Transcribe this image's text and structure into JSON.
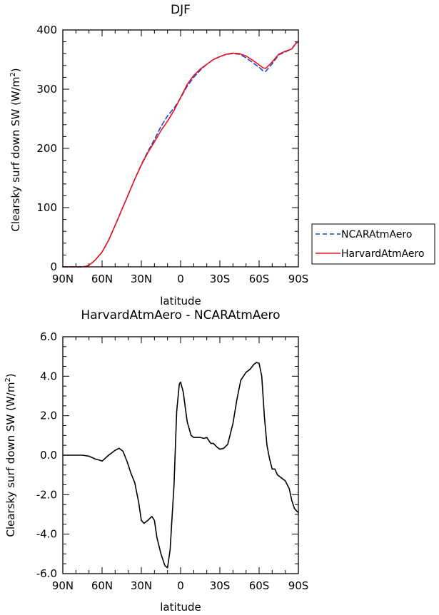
{
  "chart_data": [
    {
      "type": "line",
      "title": "DJF",
      "xlabel": "latitude",
      "ylabel": "Clearsky surf down SW (W/m²)",
      "ylabel_main": "Clearsky surf down SW (W/m",
      "ylabel_sup": "2",
      "ylabel_close": ")",
      "x_axis": "latitude, 90N (left) to 90S (right); N positive, S negative",
      "xlim": [
        90,
        -90
      ],
      "ylim": [
        0,
        400
      ],
      "xticks": [
        90,
        60,
        30,
        0,
        -30,
        -60,
        -90
      ],
      "xtick_labels": [
        "90N",
        "60N",
        "30N",
        "0",
        "30S",
        "60S",
        "90S"
      ],
      "yticks": [
        0,
        100,
        200,
        300,
        400
      ],
      "ytick_labels": [
        "0",
        "100",
        "200",
        "300",
        "400"
      ],
      "legend_placement": "right, outside plot",
      "series": [
        {
          "name": "NCARAtmAero",
          "color": "#1f3fcf",
          "style": "dashed",
          "x": [
            90,
            80,
            75,
            72,
            70,
            67,
            65,
            60,
            55,
            50,
            45,
            40,
            35,
            30,
            25,
            20,
            15,
            10,
            5,
            0,
            -5,
            -10,
            -15,
            -20,
            -25,
            -30,
            -35,
            -40,
            -45,
            -50,
            -55,
            -60,
            -63,
            -65,
            -70,
            -75,
            -80,
            -85,
            -88,
            -90
          ],
          "values": [
            0,
            0,
            0,
            1,
            3,
            8,
            12,
            25,
            45,
            70,
            96,
            122,
            148,
            173,
            195,
            215,
            237,
            255,
            268,
            285,
            305,
            320,
            332,
            342,
            350,
            355,
            359,
            360,
            359,
            353,
            345,
            337,
            331,
            330,
            343,
            358,
            363,
            368,
            378,
            381
          ]
        },
        {
          "name": "HarvardAtmAero",
          "color": "#e8141b",
          "style": "solid",
          "x": [
            90,
            80,
            75,
            72,
            70,
            67,
            65,
            60,
            55,
            50,
            45,
            40,
            35,
            30,
            25,
            20,
            15,
            10,
            5,
            0,
            -5,
            -10,
            -15,
            -20,
            -25,
            -30,
            -35,
            -40,
            -45,
            -50,
            -55,
            -60,
            -63,
            -65,
            -70,
            -75,
            -80,
            -85,
            -88,
            -90
          ],
          "values": [
            0,
            0,
            0,
            1,
            3,
            8,
            12,
            25,
            45,
            70,
            96,
            122,
            148,
            172,
            193,
            211,
            230,
            246,
            264,
            286,
            308,
            323,
            334,
            342,
            350,
            355,
            359,
            361,
            360,
            356,
            349,
            341,
            336,
            335,
            346,
            359,
            364,
            368,
            377,
            380
          ]
        }
      ]
    },
    {
      "type": "line",
      "title": "HarvardAtmAero - NCARAtmAero",
      "xlabel": "latitude",
      "ylabel": "Clearsky surf down SW (W/m²)",
      "ylabel_main": "Clearsky surf down SW (W/m",
      "ylabel_sup": "2",
      "ylabel_close": ")",
      "x_axis": "latitude, 90N (left) to 90S (right); N positive, S negative",
      "xlim": [
        90,
        -90
      ],
      "ylim": [
        -6,
        6
      ],
      "xticks": [
        90,
        60,
        30,
        0,
        -30,
        -60,
        -90
      ],
      "xtick_labels": [
        "90N",
        "60N",
        "30N",
        "0",
        "30S",
        "60S",
        "90S"
      ],
      "yticks": [
        -6,
        -4,
        -2,
        0,
        2,
        4,
        6
      ],
      "ytick_labels": [
        "-6.0",
        "-4.0",
        "-2.0",
        "0.0",
        "2.0",
        "4.0",
        "6.0"
      ],
      "series": [
        {
          "color": "#000000",
          "style": "solid",
          "x": [
            90,
            80,
            75,
            70,
            65,
            62,
            60,
            55,
            50,
            47,
            44,
            41,
            38,
            35,
            32,
            30,
            28,
            25,
            22,
            20,
            18,
            15,
            12,
            10,
            8,
            5,
            3,
            1,
            0,
            -2,
            -5,
            -8,
            -10,
            -15,
            -18,
            -20,
            -23,
            -25,
            -28,
            -30,
            -33,
            -36,
            -40,
            -43,
            -46,
            -50,
            -53,
            -56,
            -58,
            -60,
            -62,
            -64,
            -66,
            -68,
            -70,
            -72,
            -74,
            -76,
            -78,
            -80,
            -83,
            -85,
            -87,
            -89,
            -90
          ],
          "values": [
            0.0,
            0.0,
            0.0,
            -0.05,
            -0.2,
            -0.25,
            -0.3,
            0.0,
            0.25,
            0.35,
            0.2,
            -0.3,
            -0.9,
            -1.4,
            -2.4,
            -3.3,
            -3.45,
            -3.3,
            -3.1,
            -3.3,
            -4.2,
            -5.0,
            -5.6,
            -5.7,
            -4.8,
            -1.5,
            2.2,
            3.6,
            3.7,
            3.2,
            1.7,
            1.0,
            0.9,
            0.9,
            0.85,
            0.9,
            0.6,
            0.6,
            0.4,
            0.3,
            0.35,
            0.55,
            1.6,
            2.8,
            3.8,
            4.2,
            4.35,
            4.6,
            4.7,
            4.65,
            4.0,
            2.0,
            0.5,
            -0.2,
            -0.7,
            -0.7,
            -1.0,
            -1.1,
            -1.2,
            -1.3,
            -1.7,
            -2.3,
            -2.7,
            -2.85,
            -2.9
          ]
        }
      ]
    }
  ]
}
